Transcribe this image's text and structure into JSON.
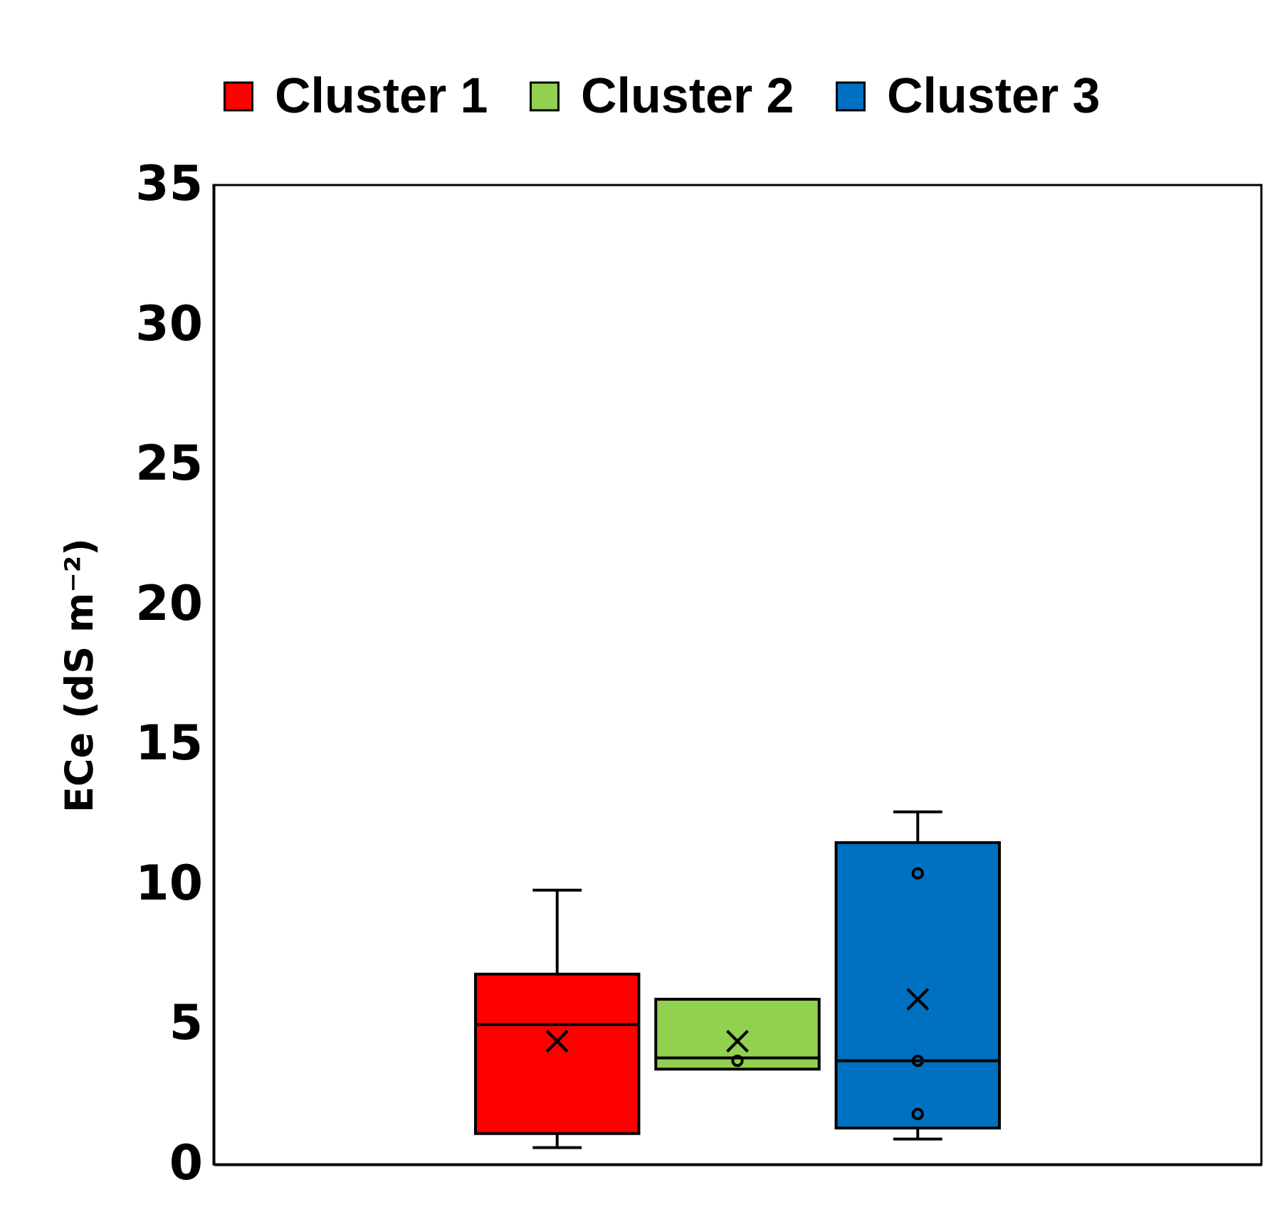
{
  "chart_data": {
    "type": "box",
    "ylabel": "ECe (dS m⁻²)",
    "categories": [
      null
    ],
    "series": [
      {
        "name": "Cluster 1",
        "color": "#ff0000",
        "boxes": [
          {
            "low": 0.6,
            "q1": 1.1,
            "median": 5.0,
            "q3": 6.8,
            "high": 9.8,
            "mean": 4.4
          }
        ]
      },
      {
        "name": "Cluster 2",
        "color": "#92d050",
        "boxes": [
          {
            "low": 3.4,
            "q1": 3.4,
            "median": 3.8,
            "q3": 5.9,
            "high": 5.9,
            "mean": 4.4,
            "outliers": [
              3.7
            ]
          }
        ]
      },
      {
        "name": "Cluster 3",
        "color": "#0070c0",
        "boxes": [
          {
            "low": 0.9,
            "q1": 1.3,
            "median": 3.7,
            "q3": 11.5,
            "high": 12.6,
            "mean": 5.9,
            "outliers": [
              10.4,
              3.7,
              1.8
            ]
          }
        ]
      }
    ],
    "ylim": [
      0,
      35
    ],
    "yticks": [
      0,
      5,
      10,
      15,
      20,
      25,
      30,
      35
    ],
    "grid": false,
    "legend": "top",
    "tick_labels": "y"
  }
}
